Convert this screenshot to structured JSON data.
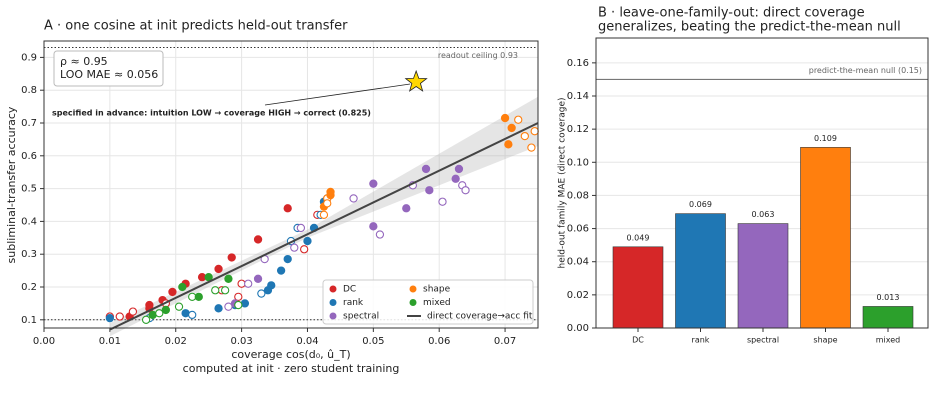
{
  "chart_data": [
    {
      "type": "scatter",
      "title": "A · one cosine at init predicts held-out transfer",
      "xlabel": "coverage  cos(d₀, û_T)",
      "xlabel_note": "computed at init · zero student training",
      "ylabel": "subliminal-transfer accuracy",
      "xlim": [
        0,
        0.075
      ],
      "ylim": [
        0.075,
        0.95
      ],
      "xticks": [
        {
          "value": 0,
          "label": "0.00"
        },
        0.01,
        0.02,
        0.03,
        0.04,
        0.05,
        0.06,
        0.07
      ],
      "yticks": [
        0.1,
        0.2,
        0.3,
        0.4,
        0.5,
        0.6,
        0.7,
        0.8,
        0.9
      ],
      "grid": true,
      "stats": [
        "ρ ≈ 0.95",
        "LOO MAE ≈ 0.056"
      ],
      "hlines": [
        {
          "y": 0.93,
          "label": "readout ceiling 0.93"
        },
        {
          "y": 0.1
        }
      ],
      "series": [
        {
          "name": "DC",
          "color": "#d62728",
          "x": [
            0.01,
            0.0115,
            0.013,
            0.0135,
            0.016,
            0.016,
            0.018,
            0.0195,
            0.0215,
            0.024,
            0.0265,
            0.0285,
            0.0325,
            0.037,
            0.0415,
            0.0395,
            0.03,
            0.0295,
            0.027,
            0.0185
          ],
          "values": [
            0.11,
            0.11,
            0.11,
            0.125,
            0.145,
            0.135,
            0.16,
            0.185,
            0.21,
            0.23,
            0.255,
            0.29,
            0.345,
            0.44,
            0.42,
            0.315,
            0.21,
            0.17,
            0.19,
            0.15
          ],
          "hollow": [
            true,
            true,
            false,
            true,
            false,
            false,
            false,
            false,
            false,
            false,
            false,
            false,
            false,
            false,
            true,
            true,
            true,
            true,
            true,
            true
          ]
        },
        {
          "name": "rank",
          "color": "#1f77b4",
          "x": [
            0.01,
            0.016,
            0.0215,
            0.0225,
            0.0265,
            0.029,
            0.0305,
            0.033,
            0.034,
            0.0345,
            0.036,
            0.037,
            0.0375,
            0.0385,
            0.04,
            0.041,
            0.042,
            0.0425,
            0.043
          ],
          "values": [
            0.105,
            0.105,
            0.12,
            0.115,
            0.135,
            0.145,
            0.15,
            0.18,
            0.19,
            0.205,
            0.25,
            0.285,
            0.34,
            0.38,
            0.34,
            0.38,
            0.42,
            0.46,
            0.47
          ],
          "hollow": [
            false,
            true,
            false,
            true,
            false,
            false,
            false,
            true,
            false,
            false,
            false,
            false,
            true,
            true,
            false,
            false,
            true,
            false,
            false
          ]
        },
        {
          "name": "spectral",
          "color": "#9467bd",
          "x": [
            0.028,
            0.029,
            0.031,
            0.0325,
            0.0335,
            0.038,
            0.039,
            0.047,
            0.05,
            0.051,
            0.055,
            0.056,
            0.0585,
            0.0605,
            0.0625,
            0.063,
            0.0635,
            0.064,
            0.05,
            0.058
          ],
          "values": [
            0.14,
            0.15,
            0.21,
            0.225,
            0.285,
            0.32,
            0.38,
            0.47,
            0.385,
            0.36,
            0.44,
            0.51,
            0.495,
            0.46,
            0.53,
            0.56,
            0.51,
            0.495,
            0.515,
            0.56
          ],
          "hollow": [
            true,
            false,
            true,
            false,
            true,
            true,
            true,
            true,
            false,
            true,
            false,
            true,
            false,
            true,
            false,
            false,
            true,
            true,
            false,
            false
          ]
        },
        {
          "name": "shape",
          "color": "#ff7f0e",
          "x": [
            0.0425,
            0.0425,
            0.043,
            0.043,
            0.0435,
            0.0435,
            0.07,
            0.071,
            0.072,
            0.0705,
            0.073,
            0.074,
            0.0745
          ],
          "values": [
            0.42,
            0.445,
            0.47,
            0.455,
            0.48,
            0.49,
            0.715,
            0.685,
            0.71,
            0.635,
            0.66,
            0.625,
            0.675
          ],
          "hollow": [
            true,
            false,
            true,
            true,
            false,
            false,
            false,
            false,
            true,
            false,
            true,
            true,
            true
          ]
        },
        {
          "name": "mixed",
          "color": "#2ca02c",
          "x": [
            0.0155,
            0.0165,
            0.0175,
            0.0185,
            0.0205,
            0.021,
            0.0225,
            0.0235,
            0.025,
            0.026,
            0.0275,
            0.028,
            0.0295
          ],
          "values": [
            0.1,
            0.115,
            0.12,
            0.13,
            0.14,
            0.2,
            0.17,
            0.17,
            0.23,
            0.19,
            0.19,
            0.225,
            0.145
          ],
          "hollow": [
            true,
            false,
            true,
            false,
            true,
            false,
            true,
            false,
            false,
            true,
            true,
            false,
            true
          ]
        }
      ],
      "fit": {
        "name": "direct coverage→acc fit",
        "color": "#444444",
        "x": [
          0.01,
          0.075
        ],
        "y": [
          0.07,
          0.7
        ]
      },
      "fit_band": {
        "x": [
          0.01,
          0.04,
          0.075
        ],
        "lower": [
          0.05,
          0.35,
          0.63
        ],
        "upper": [
          0.09,
          0.375,
          0.78
        ]
      },
      "highlight": {
        "x": 0.0565,
        "y": 0.825,
        "color": "#ffd700"
      },
      "annotation": "specified in advance: intuition LOW → coverage HIGH → correct (0.825)"
    },
    {
      "type": "bar",
      "title": [
        "B · leave-one-family-out: direct coverage",
        "generalizes, beating the predict-the-mean null"
      ],
      "ylabel": "held-out family MAE  (direct coverage)",
      "categories": [
        "DC",
        "rank",
        "spectral",
        "shape",
        "mixed"
      ],
      "values": [
        0.049,
        0.069,
        0.063,
        0.109,
        0.013
      ],
      "colors": [
        "#d62728",
        "#1f77b4",
        "#9467bd",
        "#ff7f0e",
        "#2ca02c"
      ],
      "ylim": [
        0,
        0.175
      ],
      "yticks": [
        {
          "value": 0,
          "label": "0.00"
        },
        0.02,
        0.04,
        0.06,
        0.08,
        {
          "value": 0.1,
          "label": "0.10"
        },
        0.12,
        0.14,
        0.16
      ],
      "grid": true,
      "null_line": {
        "y": 0.15,
        "label": "predict-the-mean null (0.15)"
      }
    }
  ]
}
